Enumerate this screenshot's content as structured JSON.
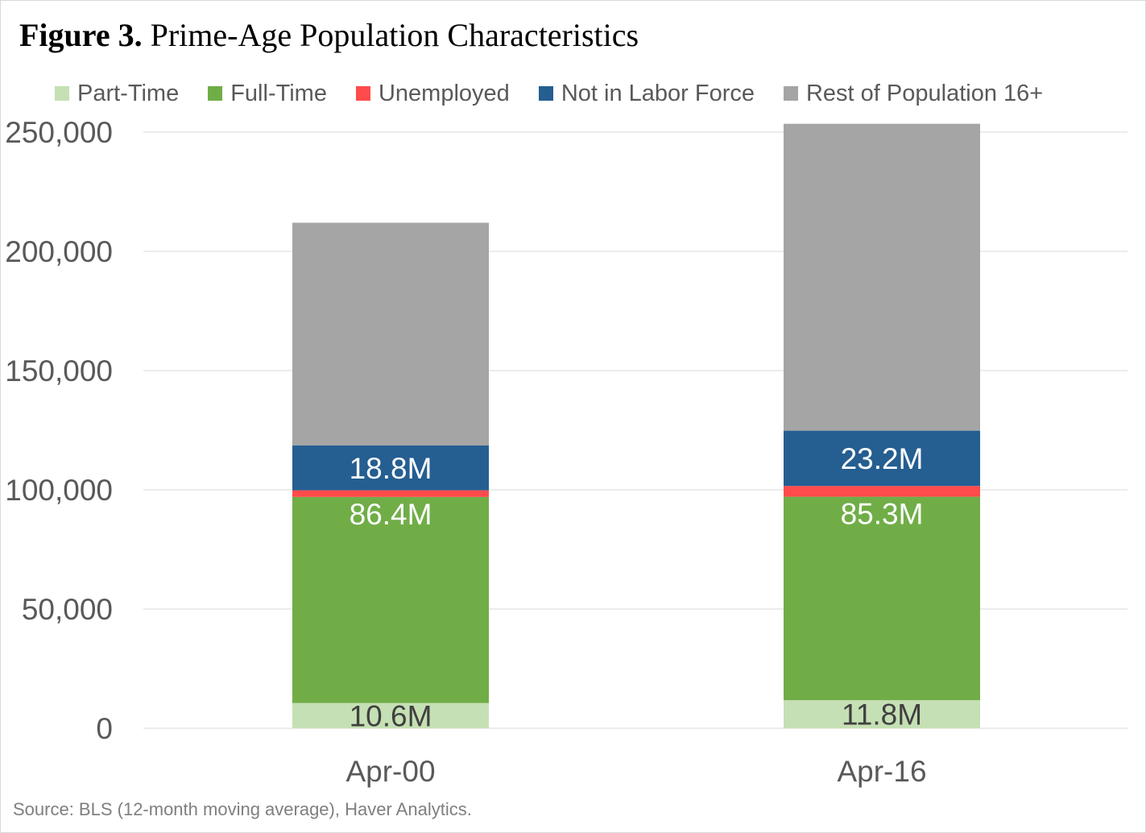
{
  "title": {
    "bold_part": "Figure 3.",
    "rest": "Prime-Age Population Characteristics"
  },
  "source": "Source: BLS (12-month moving average), Haver Analytics.",
  "colors": {
    "part_time": "#c5e0b4",
    "full_time": "#70ad47",
    "unemployed": "#ff4b4b",
    "not_in_labor_force": "#255e91",
    "rest_of_population": "#a5a5a5",
    "gridline": "#d9d9d9",
    "axis_text": "#595959"
  },
  "chart_data": {
    "type": "bar",
    "stacked": true,
    "categories": [
      "Apr-00",
      "Apr-16"
    ],
    "ylim": [
      0,
      250000
    ],
    "y_ticks": [
      0,
      50000,
      100000,
      150000,
      200000,
      250000
    ],
    "y_tick_labels": [
      "0",
      "50,000",
      "100,000",
      "150,000",
      "200,000",
      "250,000"
    ],
    "grid": true,
    "legend_position": "top",
    "series": [
      {
        "name": "Part-Time",
        "color_key": "part_time",
        "values": [
          10600,
          11800
        ],
        "labels": [
          "10.6M",
          "11.8M"
        ],
        "label_color": "#404040"
      },
      {
        "name": "Full-Time",
        "color_key": "full_time",
        "values": [
          86400,
          85300
        ],
        "labels": [
          "86.4M",
          "85.3M"
        ],
        "label_color": "#ffffff"
      },
      {
        "name": "Unemployed",
        "color_key": "unemployed",
        "values": [
          2800,
          4500
        ],
        "labels": [
          "",
          ""
        ],
        "label_color": "#ffffff"
      },
      {
        "name": "Not in Labor Force",
        "color_key": "not_in_labor_force",
        "values": [
          18800,
          23200
        ],
        "labels": [
          "18.8M",
          "23.2M"
        ],
        "label_color": "#ffffff"
      },
      {
        "name": "Rest of Population 16+",
        "color_key": "rest_of_population",
        "values": [
          93400,
          128700
        ],
        "labels": [
          "",
          ""
        ],
        "label_color": "#ffffff"
      }
    ]
  }
}
